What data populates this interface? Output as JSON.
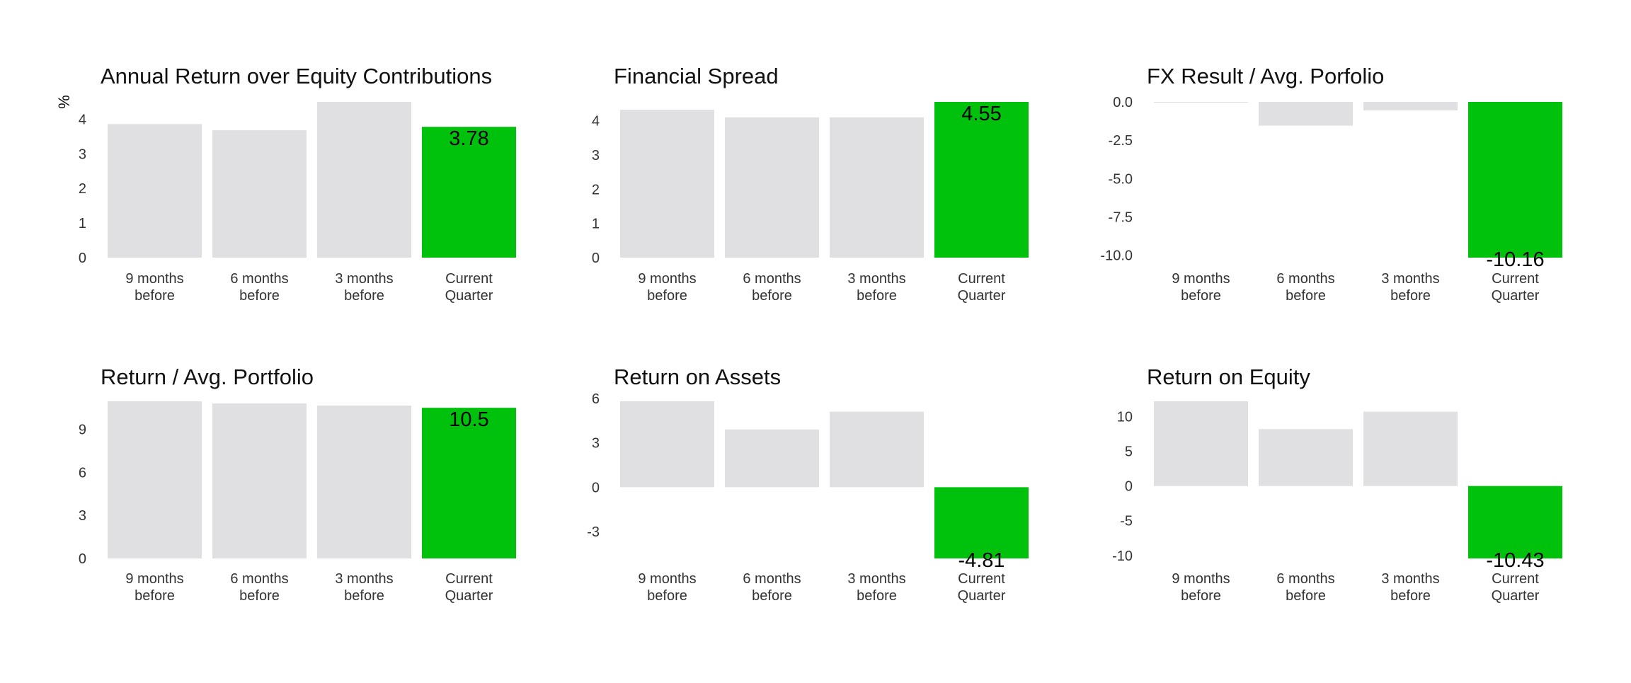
{
  "colors": {
    "highlight": "#00c20d",
    "bar": "#e0e0e2",
    "title": "#111111",
    "tick": "#333333",
    "value": "#000000"
  },
  "chart_data": [
    {
      "type": "bar",
      "title": "Annual Return over Equity Contributions",
      "ylabel": "%",
      "categories": [
        [
          "9 months",
          "before"
        ],
        [
          "6 months",
          "before"
        ],
        [
          "3 months",
          "before"
        ],
        [
          "Current",
          "Quarter"
        ]
      ],
      "values": [
        3.86,
        3.68,
        4.5,
        3.78
      ],
      "value_label": "3.78",
      "highlight_index": 3,
      "ylim": [
        0,
        4.5
      ],
      "yticks": [
        "0",
        "1",
        "2",
        "3",
        "4"
      ]
    },
    {
      "type": "bar",
      "title": "Financial Spread",
      "ylabel": "",
      "categories": [
        [
          "9 months",
          "before"
        ],
        [
          "6 months",
          "before"
        ],
        [
          "3 months",
          "before"
        ],
        [
          "Current",
          "Quarter"
        ]
      ],
      "values": [
        4.32,
        4.1,
        4.1,
        4.55
      ],
      "value_label": "4.55",
      "highlight_index": 3,
      "ylim": [
        0,
        4.55
      ],
      "yticks": [
        "0",
        "1",
        "2",
        "3",
        "4"
      ]
    },
    {
      "type": "bar",
      "title": "FX Result / Avg. Porfolio",
      "ylabel": "",
      "categories": [
        [
          "9 months",
          "before"
        ],
        [
          "6 months",
          "before"
        ],
        [
          "3 months",
          "before"
        ],
        [
          "Current",
          "Quarter"
        ]
      ],
      "values": [
        -0.05,
        -1.55,
        -0.55,
        -10.16
      ],
      "value_label": "-10.16",
      "highlight_index": 3,
      "ylim": [
        -10.16,
        0
      ],
      "yticks": [
        "0.0",
        "-2.5",
        "-5.0",
        "-7.5",
        "-10.0"
      ]
    },
    {
      "type": "bar",
      "title": "Return / Avg. Portfolio",
      "ylabel": "",
      "categories": [
        [
          "9 months",
          "before"
        ],
        [
          "6 months",
          "before"
        ],
        [
          "3 months",
          "before"
        ],
        [
          "Current",
          "Quarter"
        ]
      ],
      "values": [
        10.95,
        10.8,
        10.65,
        10.5
      ],
      "value_label": "10.5",
      "highlight_index": 3,
      "ylim": [
        0,
        10.95
      ],
      "yticks": [
        "0",
        "3",
        "6",
        "9"
      ]
    },
    {
      "type": "bar",
      "title": "Return on Assets",
      "ylabel": "",
      "categories": [
        [
          "9 months",
          "before"
        ],
        [
          "6 months",
          "before"
        ],
        [
          "3 months",
          "before"
        ],
        [
          "Current",
          "Quarter"
        ]
      ],
      "values": [
        5.8,
        3.9,
        5.1,
        -4.81
      ],
      "value_label": "-4.81",
      "highlight_index": 3,
      "ylim": [
        -4.81,
        5.8
      ],
      "yticks": [
        "6",
        "3",
        "0",
        "-3"
      ]
    },
    {
      "type": "bar",
      "title": "Return on Equity",
      "ylabel": "",
      "categories": [
        [
          "9 months",
          "before"
        ],
        [
          "6 months",
          "before"
        ],
        [
          "3 months",
          "before"
        ],
        [
          "Current",
          "Quarter"
        ]
      ],
      "values": [
        12.2,
        8.2,
        10.7,
        -10.43
      ],
      "value_label": "-10.43",
      "highlight_index": 3,
      "ylim": [
        -10.43,
        12.2
      ],
      "yticks": [
        "10",
        "5",
        "0",
        "-5",
        "-10"
      ]
    }
  ]
}
